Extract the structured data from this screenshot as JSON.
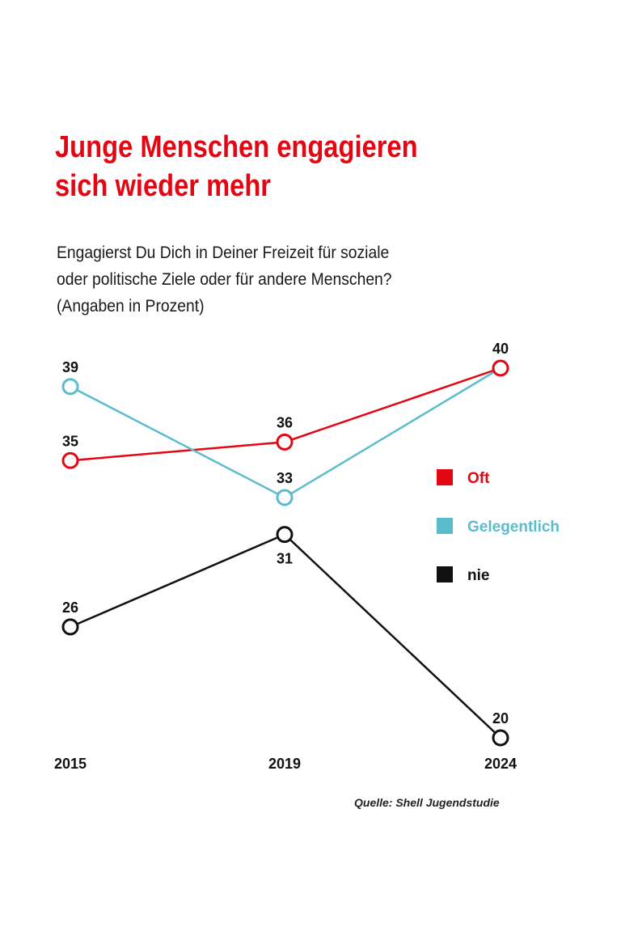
{
  "chart_data": {
    "type": "line",
    "title": "Junge Menschen engagieren sich wieder mehr",
    "subtitle": [
      "Engagierst Du Dich in Deiner Freizeit für soziale",
      "oder politische Ziele oder für andere Menschen?",
      "(Angaben in Prozent)"
    ],
    "categories": [
      "2015",
      "2019",
      "2024"
    ],
    "series": [
      {
        "name": "Oft",
        "color": "#e30613",
        "values": [
          35,
          36,
          40
        ]
      },
      {
        "name": "Gelegentlich",
        "color": "#5bbccc",
        "values": [
          39,
          33,
          40
        ]
      },
      {
        "name": "nie",
        "color": "#111111",
        "values": [
          26,
          31,
          20
        ]
      }
    ],
    "legend_position": "right",
    "grid": false,
    "source": "Quelle: Shell Jugendstudie"
  }
}
